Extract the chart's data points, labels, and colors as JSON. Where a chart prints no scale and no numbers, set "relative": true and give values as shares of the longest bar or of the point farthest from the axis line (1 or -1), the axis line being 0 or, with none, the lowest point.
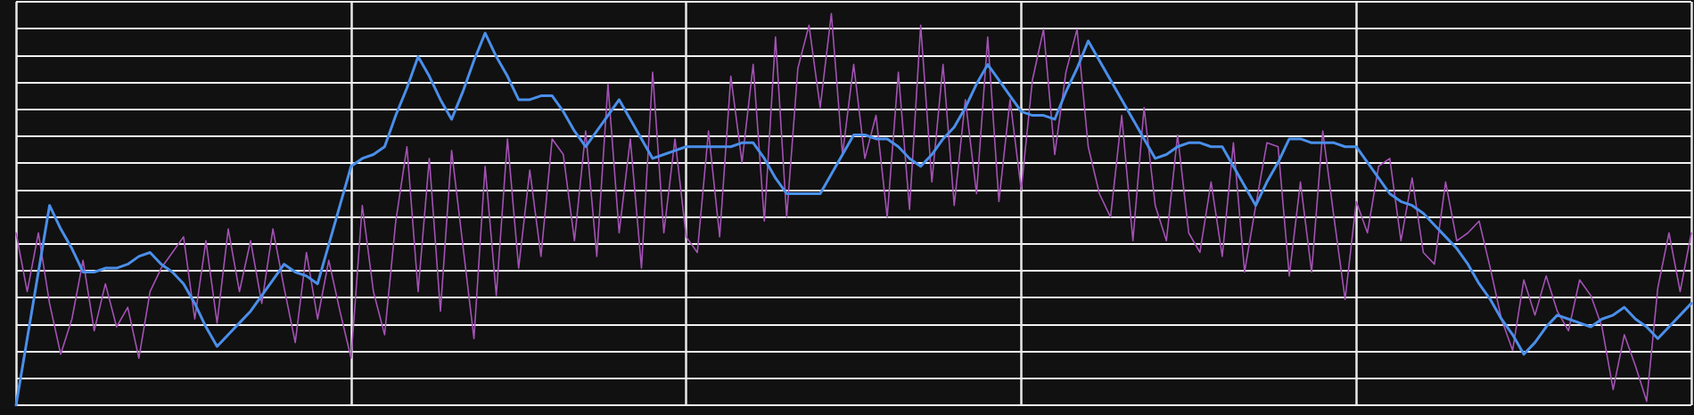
{
  "chart_data": {
    "type": "line",
    "relative": true,
    "grid": true,
    "marker": "none",
    "line_style": "solid",
    "categories": [
      null,
      null,
      null,
      null,
      null,
      null,
      null,
      null,
      null,
      null,
      null,
      null,
      null,
      null,
      null,
      null,
      null,
      null,
      null,
      null,
      null,
      null,
      null,
      null,
      null,
      null,
      null,
      null,
      null,
      null,
      null,
      null,
      null,
      null,
      null,
      null,
      null,
      null,
      null,
      null,
      null,
      null,
      null,
      null,
      null,
      null,
      null,
      null,
      null,
      null,
      null,
      null,
      null,
      null,
      null,
      null,
      null,
      null,
      null,
      null,
      null,
      null,
      null,
      null,
      null,
      null,
      null,
      null,
      null,
      null,
      null,
      null,
      null,
      null,
      null,
      null,
      null,
      null,
      null,
      null,
      null,
      null,
      null,
      null,
      null,
      null,
      null,
      null,
      null,
      null,
      null,
      null,
      null,
      null,
      null,
      null,
      null,
      null,
      null,
      null,
      null,
      null,
      null,
      null,
      null,
      null,
      null,
      null,
      null,
      null,
      null,
      null,
      null,
      null,
      null,
      null,
      null,
      null,
      null,
      null,
      null,
      null,
      null,
      null,
      null,
      null,
      null,
      null,
      null,
      null,
      null,
      null,
      null,
      null,
      null,
      null,
      null,
      null,
      null,
      null,
      null,
      null,
      null,
      null,
      null,
      null,
      null,
      null,
      null,
      null,
      null
    ],
    "series": [
      {
        "color": "#a352b4",
        "values": [
          0.44,
          0.29,
          0.44,
          0.26,
          0.13,
          0.22,
          0.37,
          0.19,
          0.31,
          0.2,
          0.25,
          0.12,
          0.29,
          0.35,
          0.39,
          0.43,
          0.22,
          0.42,
          0.21,
          0.45,
          0.29,
          0.42,
          0.26,
          0.45,
          0.3,
          0.16,
          0.39,
          0.22,
          0.37,
          0.24,
          0.12,
          0.51,
          0.29,
          0.18,
          0.47,
          0.66,
          0.29,
          0.63,
          0.24,
          0.65,
          0.41,
          0.17,
          0.61,
          0.28,
          0.68,
          0.35,
          0.6,
          0.38,
          0.68,
          0.64,
          0.42,
          0.7,
          0.38,
          0.82,
          0.44,
          0.68,
          0.35,
          0.85,
          0.44,
          0.68,
          0.43,
          0.39,
          0.7,
          0.43,
          0.84,
          0.62,
          0.87,
          0.47,
          0.94,
          0.48,
          0.86,
          0.97,
          0.76,
          1.0,
          0.64,
          0.87,
          0.63,
          0.74,
          0.48,
          0.85,
          0.5,
          0.97,
          0.57,
          0.87,
          0.51,
          0.78,
          0.54,
          0.94,
          0.52,
          0.78,
          0.55,
          0.83,
          0.96,
          0.64,
          0.85,
          0.96,
          0.66,
          0.54,
          0.48,
          0.74,
          0.42,
          0.76,
          0.51,
          0.42,
          0.69,
          0.44,
          0.39,
          0.57,
          0.38,
          0.67,
          0.34,
          0.51,
          0.67,
          0.66,
          0.33,
          0.57,
          0.34,
          0.7,
          0.48,
          0.27,
          0.52,
          0.44,
          0.61,
          0.63,
          0.42,
          0.58,
          0.39,
          0.36,
          0.57,
          0.42,
          0.44,
          0.47,
          0.35,
          0.22,
          0.14,
          0.32,
          0.23,
          0.33,
          0.24,
          0.19,
          0.32,
          0.28,
          0.2,
          0.04,
          0.18,
          0.1,
          0.01,
          0.3,
          0.44,
          0.29,
          0.44
        ]
      },
      {
        "color": "#4a8fea",
        "values": [
          0,
          0.17,
          0.34,
          0.51,
          0.45,
          0.4,
          0.34,
          0.34,
          0.35,
          0.35,
          0.36,
          0.38,
          0.39,
          0.36,
          0.34,
          0.31,
          0.26,
          0.2,
          0.15,
          0.18,
          0.21,
          0.24,
          0.28,
          0.32,
          0.36,
          0.34,
          0.33,
          0.31,
          0.41,
          0.51,
          0.61,
          0.63,
          0.64,
          0.66,
          0.74,
          0.81,
          0.89,
          0.84,
          0.78,
          0.73,
          0.8,
          0.88,
          0.95,
          0.89,
          0.84,
          0.78,
          0.78,
          0.79,
          0.79,
          0.75,
          0.7,
          0.66,
          0.7,
          0.74,
          0.78,
          0.73,
          0.68,
          0.63,
          0.64,
          0.65,
          0.66,
          0.66,
          0.66,
          0.66,
          0.66,
          0.67,
          0.67,
          0.63,
          0.58,
          0.54,
          0.54,
          0.54,
          0.54,
          0.59,
          0.64,
          0.69,
          0.69,
          0.68,
          0.68,
          0.66,
          0.63,
          0.61,
          0.64,
          0.68,
          0.71,
          0.76,
          0.82,
          0.87,
          0.83,
          0.79,
          0.75,
          0.74,
          0.74,
          0.73,
          0.8,
          0.86,
          0.93,
          0.88,
          0.83,
          0.78,
          0.73,
          0.68,
          0.63,
          0.64,
          0.66,
          0.67,
          0.67,
          0.66,
          0.66,
          0.61,
          0.56,
          0.51,
          0.57,
          0.62,
          0.68,
          0.68,
          0.67,
          0.67,
          0.67,
          0.66,
          0.66,
          0.62,
          0.58,
          0.54,
          0.52,
          0.51,
          0.49,
          0.46,
          0.43,
          0.4,
          0.36,
          0.31,
          0.27,
          0.22,
          0.18,
          0.13,
          0.16,
          0.2,
          0.23,
          0.22,
          0.21,
          0.2,
          0.22,
          0.23,
          0.25,
          0.22,
          0.2,
          0.17,
          0.2,
          0.23,
          0.26
        ]
      }
    ]
  }
}
